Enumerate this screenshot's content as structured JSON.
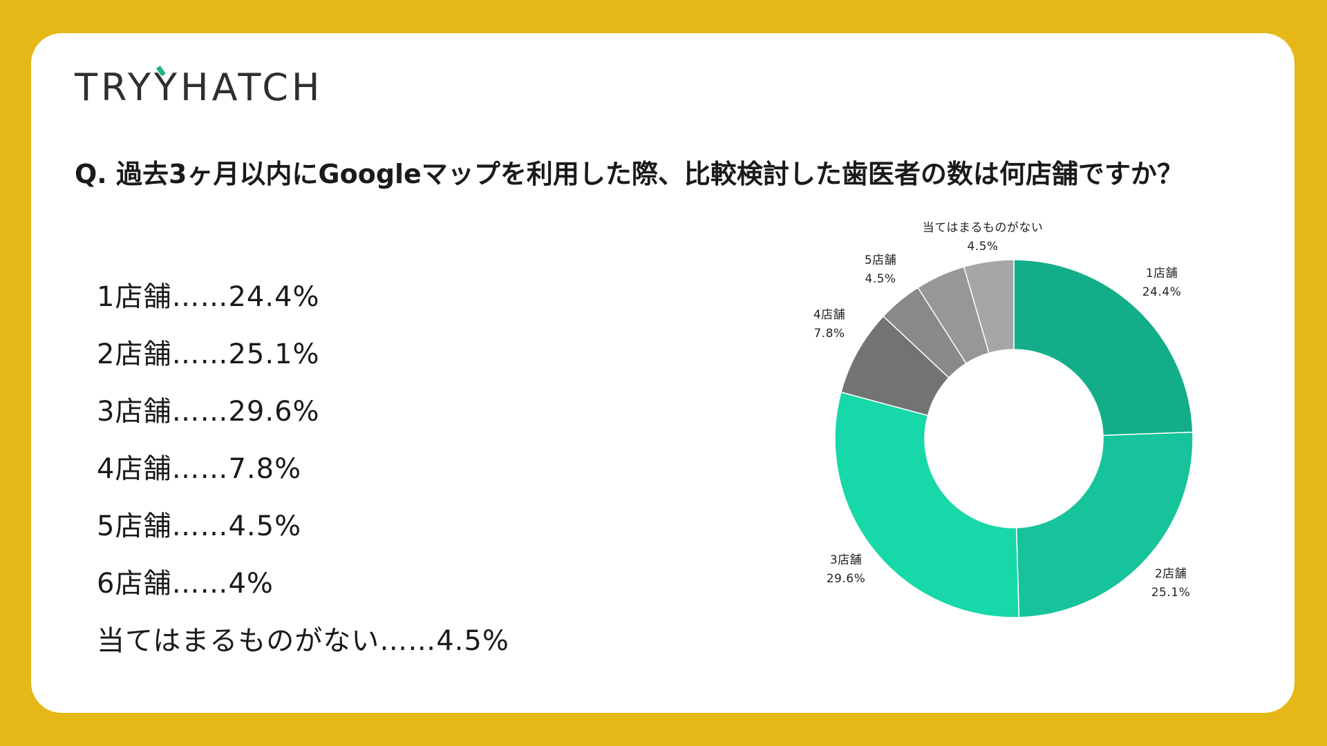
{
  "brand": {
    "logo_left": "TRY",
    "logo_y": "Y",
    "logo_right": "HATCH",
    "colors": {
      "background": "#E5B817",
      "card": "#FFFFFF",
      "logo_accent": "#19B58C"
    }
  },
  "question": "Q. 過去3ヶ月以内にGoogleマップを利用した際、比較検討した歯医者の数は何店舗ですか？",
  "answers": [
    {
      "label": "1店舗",
      "separator": "……",
      "value": "24.4%"
    },
    {
      "label": "2店舗",
      "separator": "……",
      "value": "25.1%"
    },
    {
      "label": "3店舗",
      "separator": "……",
      "value": "29.6%"
    },
    {
      "label": "4店舗",
      "separator": "……",
      "value": "7.8%"
    },
    {
      "label": "5店舗",
      "separator": "……",
      "value": "4.5%"
    },
    {
      "label": "6店舗",
      "separator": "……",
      "value": "4%"
    },
    {
      "label": "当てはまるものがない",
      "separator": "……",
      "value": "4.5%"
    }
  ],
  "chart_data": {
    "type": "pie",
    "donut": true,
    "start_angle_deg": 0,
    "direction": "clockwise",
    "title": "",
    "slices": [
      {
        "label": "1店舗",
        "value": 24.4,
        "value_label": "24.4%",
        "color": "#13AE89"
      },
      {
        "label": "2店舗",
        "value": 25.1,
        "value_label": "25.1%",
        "color": "#16C39A"
      },
      {
        "label": "3店舗",
        "value": 29.6,
        "value_label": "29.6%",
        "color": "#17D8A8"
      },
      {
        "label": "4店舗",
        "value": 7.8,
        "value_label": "7.8%",
        "color": "#737373"
      },
      {
        "label": "",
        "value": 4.0,
        "value_label": "",
        "color": "#898989"
      },
      {
        "label": "5店舗",
        "value": 4.5,
        "value_label": "4.5%",
        "color": "#979797"
      },
      {
        "label": "当てはまるものがない",
        "value": 4.5,
        "value_label": "4.5%",
        "color": "#A6A6A6"
      }
    ]
  }
}
